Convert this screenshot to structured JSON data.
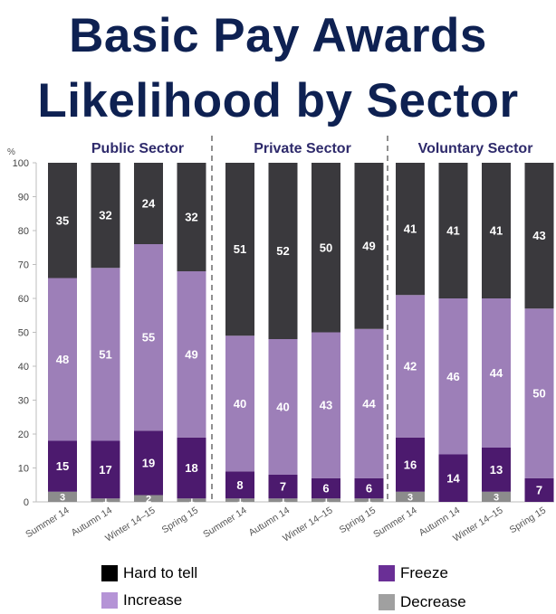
{
  "title_line1": "Basic Pay Awards",
  "title_line2": "Likelihood by Sector",
  "colors": {
    "hard_to_tell": "#3a393d",
    "increase": "#9d7fb8",
    "freeze": "#4c1a6e",
    "decrease": "#8c8c8c",
    "sector_title": "#2e2a6b",
    "title": "#0e2152"
  },
  "legend": {
    "hard_to_tell": "Hard to tell",
    "increase": "Increase",
    "freeze": "Freeze",
    "decrease": "Decrease"
  },
  "chart_data": {
    "type": "bar",
    "stacked": true,
    "ylabel": "%",
    "ylim": [
      0,
      100
    ],
    "yticks": [
      0,
      10,
      20,
      30,
      40,
      50,
      60,
      70,
      80,
      90,
      100
    ],
    "grid": false,
    "legend_position": "bottom",
    "series_order": [
      "Decrease",
      "Freeze",
      "Increase",
      "Hard to tell"
    ],
    "groups": [
      {
        "name": "Public Sector",
        "categories": [
          "Summer 14",
          "Autumn 14",
          "Winter 14–15",
          "Spring 15"
        ],
        "series": [
          {
            "name": "Decrease",
            "values": [
              3,
              1,
              2,
              1
            ]
          },
          {
            "name": "Freeze",
            "values": [
              15,
              17,
              19,
              18
            ]
          },
          {
            "name": "Increase",
            "values": [
              48,
              51,
              55,
              49
            ]
          },
          {
            "name": "Hard to tell",
            "values": [
              35,
              32,
              24,
              32
            ]
          }
        ]
      },
      {
        "name": "Private Sector",
        "categories": [
          "Summer 14",
          "Autumn 14",
          "Winter 14–15",
          "Spring 15"
        ],
        "series": [
          {
            "name": "Decrease",
            "values": [
              1,
              1,
              1,
              1
            ]
          },
          {
            "name": "Freeze",
            "values": [
              8,
              7,
              6,
              6
            ]
          },
          {
            "name": "Increase",
            "values": [
              40,
              40,
              43,
              44
            ]
          },
          {
            "name": "Hard to tell",
            "values": [
              51,
              52,
              50,
              49
            ]
          }
        ]
      },
      {
        "name": "Voluntary Sector",
        "categories": [
          "Summer 14",
          "Autumn 14",
          "Winter 14–15",
          "Spring 15"
        ],
        "series": [
          {
            "name": "Decrease",
            "values": [
              3,
              null,
              3,
              null
            ]
          },
          {
            "name": "Freeze",
            "values": [
              16,
              14,
              13,
              7
            ]
          },
          {
            "name": "Increase",
            "values": [
              42,
              46,
              44,
              50
            ]
          },
          {
            "name": "Hard to tell",
            "values": [
              41,
              41,
              41,
              43
            ]
          }
        ]
      }
    ]
  }
}
